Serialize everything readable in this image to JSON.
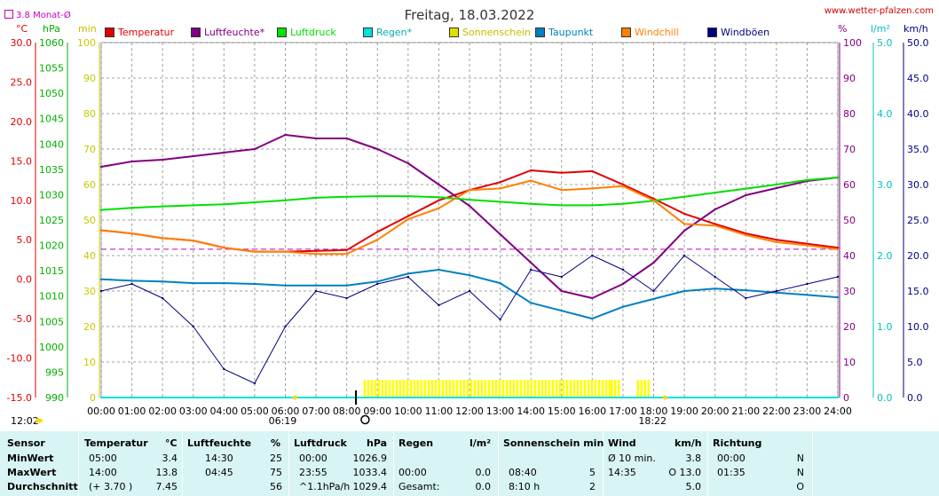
{
  "header": {
    "title": "Freitag, 18.03.2022",
    "site": "www.wetter-pfalzen.com",
    "avg_label": "3.8 Monat-Ø"
  },
  "units": {
    "temp": "°C",
    "pressure": "hPa",
    "minutes": "min",
    "percent": "%",
    "rain": "l/m²",
    "wind": "km/h"
  },
  "legend": [
    {
      "label": "Temperatur",
      "color": "#e00000"
    },
    {
      "label": "Luftfeuchte*",
      "color": "#800080"
    },
    {
      "label": "Luftdruck",
      "color": "#00e000"
    },
    {
      "label": "Regen*",
      "color": "#00e0e0"
    },
    {
      "label": "Sonnenschein",
      "color": "#e0e000"
    },
    {
      "label": "Taupunkt",
      "color": "#0080c0"
    },
    {
      "label": "Windchill",
      "color": "#ff8000"
    },
    {
      "label": "Windböen",
      "color": "#000080"
    }
  ],
  "axis_labels": {
    "temp": [
      "30.0",
      "25.0",
      "20.0",
      "15.0",
      "10.0",
      "5.0",
      "0.0",
      "-5.0",
      "-10.0",
      "-15.0"
    ],
    "pressure": [
      "1060",
      "1055",
      "1050",
      "1045",
      "1040",
      "1035",
      "1030",
      "1025",
      "1020",
      "1015",
      "1010",
      "1005",
      "1000",
      "995",
      "990"
    ],
    "minutes": [
      "100",
      "90",
      "80",
      "70",
      "60",
      "50",
      "40",
      "30",
      "20",
      "10",
      "0"
    ],
    "percent": [
      "100",
      "90",
      "80",
      "70",
      "60",
      "50",
      "40",
      "30",
      "20",
      "10",
      "0"
    ],
    "rain": [
      "5.0",
      "4.0",
      "3.0",
      "2.0",
      "1.0",
      "0.0"
    ],
    "wind": [
      "50.0",
      "45.0",
      "40.0",
      "35.0",
      "30.0",
      "25.0",
      "20.0",
      "15.0",
      "10.0",
      "5.0",
      "0.0"
    ],
    "time": [
      "00:00",
      "01:00",
      "02:00",
      "03:00",
      "04:00",
      "05:00",
      "06:00",
      "07:00",
      "08:00",
      "09:00",
      "10:00",
      "11:00",
      "12:00",
      "13:00",
      "14:00",
      "15:00",
      "16:00",
      "17:00",
      "18:00",
      "19:00",
      "20:00",
      "21:00",
      "22:00",
      "23:00",
      "24:00"
    ]
  },
  "markers": {
    "sunrise": "06:19",
    "sunset": "18:22",
    "daylength": "12:02"
  },
  "chart_data": {
    "type": "line",
    "title": "Freitag, 18.03.2022",
    "x": [
      0,
      1,
      2,
      3,
      4,
      5,
      6,
      7,
      8,
      9,
      10,
      11,
      12,
      13,
      14,
      15,
      16,
      17,
      18,
      19,
      20,
      21,
      22,
      23,
      24
    ],
    "xlim": [
      0,
      24
    ],
    "series": [
      {
        "name": "Temperatur",
        "axis": "temp",
        "ylim": [
          -15,
          30
        ],
        "values": [
          6.2,
          5.8,
          5.2,
          4.9,
          4.0,
          3.5,
          3.5,
          3.6,
          3.7,
          6.0,
          8.0,
          10.0,
          11.3,
          12.3,
          13.8,
          13.5,
          13.7,
          12.0,
          10.2,
          8.3,
          7.0,
          5.8,
          5.0,
          4.5,
          4.0
        ]
      },
      {
        "name": "Luftfeuchte*",
        "axis": "percent",
        "ylim": [
          0,
          100
        ],
        "values": [
          65,
          66.5,
          67,
          68,
          69,
          70,
          74,
          73,
          73,
          70,
          66,
          60,
          54,
          46,
          38,
          30,
          28,
          32,
          38,
          47,
          53,
          57,
          59,
          61,
          62
        ]
      },
      {
        "name": "Luftdruck",
        "axis": "pressure",
        "ylim": [
          990,
          1060
        ],
        "values": [
          1027.0,
          1027.4,
          1027.7,
          1027.9,
          1028.1,
          1028.5,
          1028.9,
          1029.4,
          1029.6,
          1029.7,
          1029.7,
          1029.5,
          1029.0,
          1028.6,
          1028.2,
          1027.9,
          1027.9,
          1028.2,
          1028.8,
          1029.6,
          1030.4,
          1031.2,
          1032.0,
          1032.9,
          1033.4
        ]
      },
      {
        "name": "Regen*",
        "axis": "rain",
        "ylim": [
          0,
          5
        ],
        "values": [
          0,
          0,
          0,
          0,
          0,
          0,
          0,
          0,
          0,
          0,
          0,
          0,
          0,
          0,
          0,
          0,
          0,
          0,
          0,
          0,
          0,
          0,
          0,
          0,
          0
        ]
      },
      {
        "name": "Taupunkt",
        "axis": "temp",
        "ylim": [
          -15,
          30
        ],
        "values": [
          0.0,
          -0.2,
          -0.3,
          -0.5,
          -0.5,
          -0.6,
          -0.8,
          -0.8,
          -0.8,
          -0.3,
          0.7,
          1.2,
          0.5,
          -0.5,
          -3.0,
          -4.0,
          -5.0,
          -3.5,
          -2.5,
          -1.5,
          -1.2,
          -1.4,
          -1.7,
          -2.0,
          -2.3
        ]
      },
      {
        "name": "Windchill",
        "axis": "temp",
        "ylim": [
          -15,
          30
        ],
        "values": [
          6.2,
          5.8,
          5.2,
          4.9,
          4.0,
          3.5,
          3.5,
          3.2,
          3.2,
          5.0,
          7.6,
          9.0,
          11.3,
          11.5,
          12.5,
          11.3,
          11.5,
          11.8,
          10.0,
          7.0,
          6.8,
          5.6,
          4.7,
          4.3,
          3.8
        ]
      },
      {
        "name": "Windböen",
        "axis": "wind",
        "ylim": [
          0,
          50
        ],
        "values": [
          15,
          16,
          14,
          10,
          4,
          2,
          10,
          15,
          14,
          16,
          17,
          13,
          15,
          11,
          18,
          17,
          20,
          18,
          15,
          20,
          17,
          14,
          15,
          16,
          17
        ]
      }
    ],
    "reference_line": {
      "label": "3.8 Monat-Ø",
      "axis": "temp",
      "value": 3.8
    },
    "sunshine_intervals": [
      [
        8.55,
        16.55
      ],
      [
        16.6,
        16.85
      ],
      [
        17.45,
        17.9
      ]
    ]
  },
  "summary": {
    "headers": {
      "sensor": "Sensor",
      "temp": "Temperatur",
      "temp_unit": "°C",
      "hum": "Luftfeuchte",
      "hum_unit": "%",
      "pres": "Luftdruck",
      "pres_unit": "hPa",
      "rain": "Regen",
      "rain_unit": "l/m²",
      "sun": "Sonnenschein min",
      "wind": "Wind",
      "wind_unit": "km/h",
      "dir": "Richtung"
    },
    "rows": [
      {
        "label": "MinWert",
        "temp_t": "05:00",
        "temp_v": "3.4",
        "hum_t": "14:30",
        "hum_v": "25",
        "pres_t": "00:00",
        "pres_v": "1026.9",
        "rain_t": "",
        "rain_v": "",
        "sun_t": "",
        "sun_v": "",
        "wind_t": "Ø 10 min.",
        "wind_v": "3.8",
        "dir_t": "00:00",
        "dir_v": "N"
      },
      {
        "label": "MaxWert",
        "temp_t": "14:00",
        "temp_v": "13.8",
        "hum_t": "04:45",
        "hum_v": "75",
        "pres_t": "23:55",
        "pres_v": "1033.4",
        "rain_t": "00:00",
        "rain_v": "0.0",
        "sun_t": "08:40",
        "sun_v": "5",
        "wind_t": "14:35",
        "wind_v": "O 13.0",
        "dir_t": "01:35",
        "dir_v": "N"
      },
      {
        "label": "Durchschnitt",
        "temp_t": "(+ 3.70 )",
        "temp_v": "7.45",
        "hum_t": "",
        "hum_v": "56",
        "pres_t": "^1.1hPa/h",
        "pres_v": "1029.4",
        "rain_t": "Gesamt:",
        "rain_v": "0.0",
        "sun_t": "8:10 h",
        "sun_v": "2",
        "wind_t": "",
        "wind_v": "5.0",
        "dir_t": "",
        "dir_v": "O"
      }
    ]
  }
}
